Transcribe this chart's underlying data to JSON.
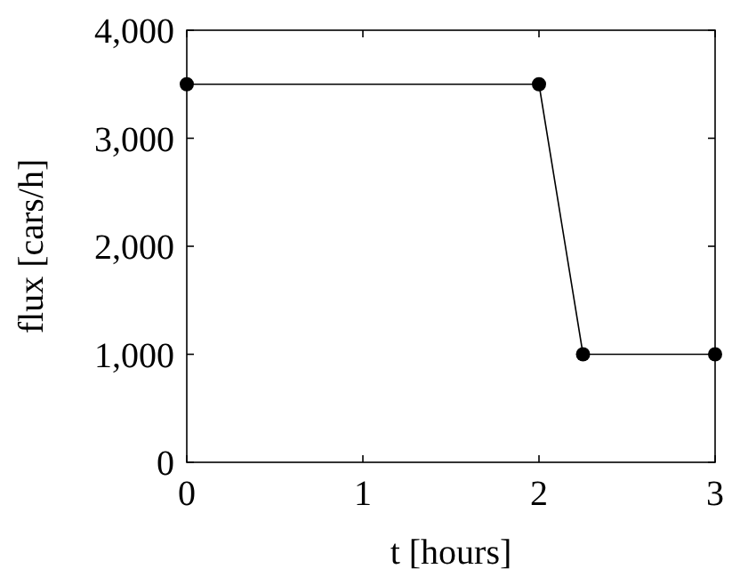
{
  "chart_data": {
    "type": "line",
    "xlabel": "t [hours]",
    "ylabel": "flux [cars/h]",
    "x": [
      0,
      2,
      2.25,
      3
    ],
    "series": [
      {
        "color": "#000000",
        "values": [
          3500,
          3500,
          1000,
          1000
        ]
      }
    ],
    "xlim": [
      0,
      3
    ],
    "xticks": [
      0,
      1,
      2,
      3
    ],
    "ylim": [
      0,
      4000
    ],
    "yticks": [
      0,
      {
        "value": 1000,
        "label": "1,000"
      },
      {
        "value": 2000,
        "label": "2,000"
      },
      {
        "value": 3000,
        "label": "3,000"
      },
      {
        "value": 4000,
        "label": "4,000"
      }
    ],
    "marker": "circle",
    "line_style": "solid"
  }
}
